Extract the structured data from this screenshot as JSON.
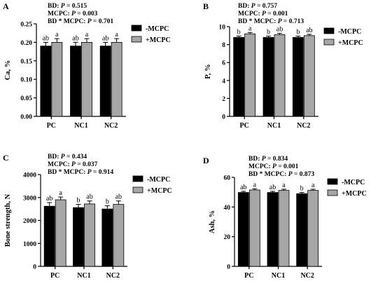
{
  "figure": {
    "colors": {
      "minus_mcpc": "#000000",
      "plus_mcpc": "#a6a6a6",
      "axis": "#000000"
    }
  },
  "chart_data": [
    {
      "type": "bar",
      "panel_letter": "A",
      "stats": [
        {
          "label": "BD: ",
          "p": "P",
          "value": " = 0.515"
        },
        {
          "label": "MCPC: ",
          "p": "P",
          "value": " = 0.003"
        },
        {
          "label": "BD * MCPC: ",
          "p": "P",
          "value": " = 0.701"
        }
      ],
      "ylabel": "Ca, %",
      "ylim": [
        0,
        0.25
      ],
      "yticks": [
        "0.00",
        "0.05",
        "0.10",
        "0.15",
        "0.20",
        "0.25"
      ],
      "ytick_values": [
        0,
        0.05,
        0.1,
        0.15,
        0.2,
        0.25
      ],
      "categories": [
        "PC",
        "NC1",
        "NC2"
      ],
      "series": [
        {
          "name": "-MCPC",
          "values": [
            0.19,
            0.19,
            0.19
          ],
          "errors": [
            0.01,
            0.01,
            0.01
          ],
          "letters": [
            "ab",
            "ab",
            "ab"
          ]
        },
        {
          "name": "+MCPC",
          "values": [
            0.2,
            0.2,
            0.2
          ],
          "errors": [
            0.01,
            0.01,
            0.01
          ],
          "letters": [
            "a",
            "a",
            "a"
          ]
        }
      ],
      "legend_position": "top-right"
    },
    {
      "type": "bar",
      "panel_letter": "B",
      "stats": [
        {
          "label": "BD: ",
          "p": "P",
          "value": " = 0.757"
        },
        {
          "label": "MCPC: ",
          "p": "P",
          "value": " = 0.001"
        },
        {
          "label": "BD * MCPC: ",
          "p": "P",
          "value": " = 0.713"
        }
      ],
      "ylabel": "P, %",
      "ylim": [
        0,
        10
      ],
      "yticks": [
        "0",
        "2",
        "4",
        "6",
        "8",
        "10"
      ],
      "ytick_values": [
        0,
        2,
        4,
        6,
        8,
        10
      ],
      "categories": [
        "PC",
        "NC1",
        "NC2"
      ],
      "series": [
        {
          "name": "-MCPC",
          "values": [
            8.8,
            8.8,
            8.8
          ],
          "errors": [
            0.15,
            0.15,
            0.15
          ],
          "letters": [
            "b",
            "b",
            "b"
          ]
        },
        {
          "name": "+MCPC",
          "values": [
            9.2,
            9.1,
            9.0
          ],
          "errors": [
            0.15,
            0.15,
            0.15
          ],
          "letters": [
            "a",
            "ab",
            "ab"
          ]
        }
      ],
      "legend_position": "top-right"
    },
    {
      "type": "bar",
      "panel_letter": "C",
      "stats": [
        {
          "label": "BD: ",
          "p": "P",
          "value": " = 0.434"
        },
        {
          "label": "MCPC: ",
          "p": "P",
          "value": " = 0.037"
        },
        {
          "label": "BD * MCPC: ",
          "p": "P",
          "value": " = 0.914"
        }
      ],
      "ylabel": "Bone strength, N",
      "ylim": [
        0,
        4000
      ],
      "yticks": [
        "0",
        "1000",
        "2000",
        "3000",
        "4000"
      ],
      "ytick_values": [
        0,
        1000,
        2000,
        3000,
        4000
      ],
      "categories": [
        "PC",
        "NC1",
        "NC2"
      ],
      "series": [
        {
          "name": "-MCPC",
          "values": [
            2620,
            2560,
            2500
          ],
          "errors": [
            160,
            140,
            140
          ],
          "letters": [
            "ab",
            "b",
            "b"
          ]
        },
        {
          "name": "+MCPC",
          "values": [
            2900,
            2720,
            2700
          ],
          "errors": [
            120,
            130,
            150
          ],
          "letters": [
            "a",
            "ab",
            "ab"
          ]
        }
      ],
      "legend_position": "top-right"
    },
    {
      "type": "bar",
      "panel_letter": "D",
      "stats": [
        {
          "label": "BD: ",
          "p": "P",
          "value": " = 0.834"
        },
        {
          "label": "MCPC: ",
          "p": "P",
          "value": " = 0.001"
        },
        {
          "label": "BD * MCPC: ",
          "p": "P",
          "value": " = 0.873"
        }
      ],
      "ylabel": "Ash, %",
      "ylim": [
        0,
        60
      ],
      "yticks": [
        "0",
        "20",
        "40",
        "60"
      ],
      "ytick_values": [
        0,
        20,
        40,
        60
      ],
      "categories": [
        "PC",
        "NC1",
        "NC2"
      ],
      "series": [
        {
          "name": "-MCPC",
          "values": [
            49.8,
            49.8,
            49.0
          ],
          "errors": [
            0.8,
            0.8,
            0.8
          ],
          "letters": [
            "ab",
            "ab",
            "b"
          ]
        },
        {
          "name": "+MCPC",
          "values": [
            51.5,
            51.2,
            51.2
          ],
          "errors": [
            0.8,
            0.8,
            0.8
          ],
          "letters": [
            "a",
            "a",
            "a"
          ]
        }
      ],
      "legend_position": "top-right"
    }
  ]
}
